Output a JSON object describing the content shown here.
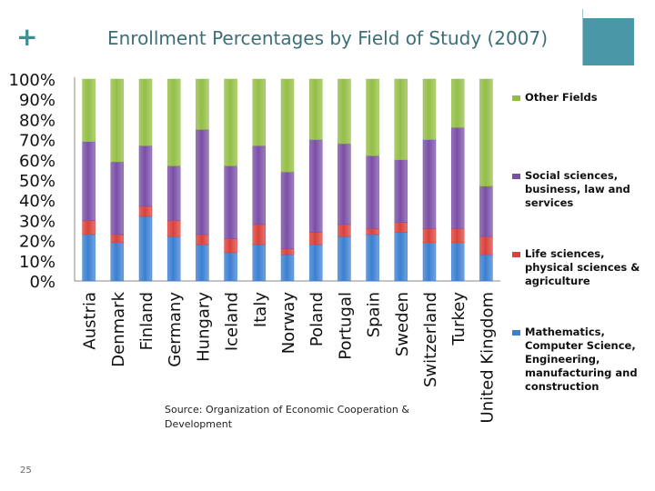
{
  "slide": {
    "plus_symbol": "+",
    "title": "Enrollment Percentages by Field of Study (2007)",
    "source": "Source: Organization of Economic Cooperation & Development",
    "page_number": "25"
  },
  "colors": {
    "accent": "#4a97a7",
    "title": "#3c6f78"
  },
  "chart_data": {
    "type": "bar",
    "stacked": true,
    "title": "Enrollment Percentages by Field of Study (2007)",
    "categories": [
      "Austria",
      "Denmark",
      "Finland",
      "Germany",
      "Hungary",
      "Iceland",
      "Italy",
      "Norway",
      "Poland",
      "Portugal",
      "Spain",
      "Sweden",
      "Switzerland",
      "Turkey",
      "United Kingdom"
    ],
    "ylim": [
      0,
      100
    ],
    "yticks": [
      "0%",
      "10%",
      "20%",
      "30%",
      "40%",
      "50%",
      "60%",
      "70%",
      "80%",
      "90%",
      "100%"
    ],
    "legend_position": "right",
    "series": [
      {
        "name": "Mathematics, Computer Science, Engineering, manufacturing and construction",
        "color": "#3b7fd1",
        "values": [
          23,
          19,
          32,
          22,
          18,
          14,
          18,
          13,
          18,
          22,
          23,
          24,
          19,
          19,
          13
        ]
      },
      {
        "name": "Life sciences, physical sciences & agriculture",
        "color": "#d9413b",
        "values": [
          7,
          4,
          5,
          8,
          5,
          7,
          10,
          3,
          6,
          6,
          3,
          5,
          7,
          7,
          9
        ]
      },
      {
        "name": "Social sciences, business, law and services",
        "color": "#7a4fa6",
        "values": [
          39,
          36,
          30,
          27,
          52,
          36,
          39,
          38,
          46,
          40,
          36,
          31,
          44,
          50,
          25
        ]
      },
      {
        "name": "Other Fields",
        "color": "#93be46",
        "values": [
          31,
          41,
          33,
          43,
          25,
          43,
          33,
          46,
          30,
          32,
          38,
          40,
          30,
          24,
          53
        ]
      }
    ],
    "legend_order": [
      3,
      2,
      1,
      0
    ]
  }
}
